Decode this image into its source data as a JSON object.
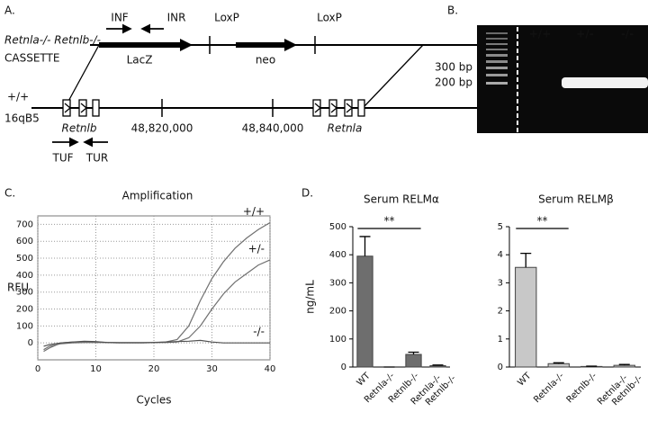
{
  "panel_labels": [
    "A.",
    "B.",
    "C.",
    "D."
  ],
  "diagram": {
    "genotype": "Retnla-/- Retnlb-/-",
    "cassette": "CASSETTE",
    "inf": "INF",
    "inr": "INR",
    "loxp_left": "LoxP",
    "loxp_right": "LoxP",
    "lacz": "LacZ",
    "neo": "neo",
    "wildtype": "+/+",
    "locus": "16qB5",
    "retnlb": "Retnlb",
    "coord_left": "48,820,000",
    "coord_right": "48,840,000",
    "retnla": "Retnla",
    "tuf": "TUF",
    "tur": "TUR"
  },
  "gel": {
    "lanes": [
      "+/+",
      "+/-",
      "-/-"
    ],
    "markers": [
      "300 bp",
      "200 bp"
    ]
  },
  "chart_data": [
    {
      "type": "line",
      "title": "Amplification",
      "xlabel": "Cycles",
      "ylabel": "RFU",
      "x": [
        1,
        2,
        4,
        6,
        8,
        10,
        12,
        14,
        16,
        18,
        20,
        22,
        24,
        26,
        28,
        30,
        32,
        34,
        36,
        38,
        40
      ],
      "series": [
        {
          "name": "+/+",
          "color": "#707070",
          "values": [
            -50,
            -30,
            0,
            5,
            5,
            5,
            3,
            2,
            2,
            2,
            3,
            5,
            20,
            100,
            250,
            380,
            480,
            560,
            620,
            670,
            710
          ]
        },
        {
          "name": "+/-",
          "color": "#707070",
          "values": [
            -40,
            -20,
            -5,
            0,
            2,
            2,
            2,
            2,
            2,
            2,
            2,
            2,
            5,
            30,
            100,
            200,
            290,
            360,
            410,
            460,
            490
          ]
        },
        {
          "name": "-/-",
          "color": "#505050",
          "values": [
            -20,
            -10,
            0,
            5,
            10,
            8,
            2,
            0,
            0,
            0,
            2,
            5,
            8,
            10,
            15,
            5,
            0,
            0,
            0,
            0,
            0
          ]
        }
      ],
      "xlim": [
        0,
        40
      ],
      "xticks": [
        0,
        10,
        20,
        30,
        40
      ],
      "ylim": [
        -100,
        750
      ],
      "yticks": [
        0,
        100,
        200,
        300,
        400,
        500,
        600,
        700
      ],
      "grid": true
    },
    {
      "type": "bar",
      "title": "Serum RELMα",
      "ylabel": "ng/mL",
      "annotation": "**",
      "categories": [
        "WT",
        "Retnla-/-",
        "Retnlb-/-",
        "Retnla-/- Retnlb-/-"
      ],
      "values": [
        395,
        0,
        45,
        5
      ],
      "errors": [
        70,
        0,
        8,
        2
      ],
      "color": "#6e6e6e",
      "ylim": [
        0,
        500
      ],
      "yticks": [
        0,
        100,
        200,
        300,
        400,
        500
      ]
    },
    {
      "type": "bar",
      "title": "Serum RELMβ",
      "annotation": "**",
      "categories": [
        "WT",
        "Retnla-/-",
        "Retnlb-/-",
        "Retnla-/- Retnlb-/-"
      ],
      "values": [
        3.55,
        0.12,
        0.02,
        0.06
      ],
      "errors": [
        0.5,
        0.03,
        0.01,
        0.03
      ],
      "color": "#c8c8c8",
      "ylim": [
        0,
        5
      ],
      "yticks": [
        0,
        1,
        2,
        3,
        4,
        5
      ]
    }
  ]
}
